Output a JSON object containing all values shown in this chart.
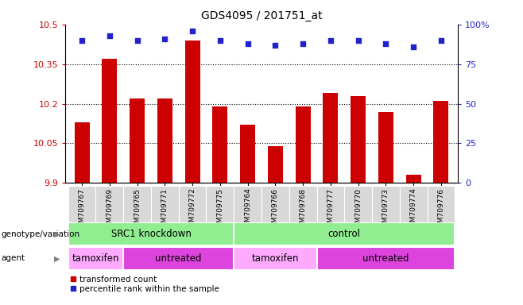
{
  "title": "GDS4095 / 201751_at",
  "samples": [
    "GSM709767",
    "GSM709769",
    "GSM709765",
    "GSM709771",
    "GSM709772",
    "GSM709775",
    "GSM709764",
    "GSM709766",
    "GSM709768",
    "GSM709777",
    "GSM709770",
    "GSM709773",
    "GSM709774",
    "GSM709776"
  ],
  "bar_values": [
    10.13,
    10.37,
    10.22,
    10.22,
    10.44,
    10.19,
    10.12,
    10.04,
    10.19,
    10.24,
    10.23,
    10.17,
    9.93,
    10.21
  ],
  "percentile_values": [
    90,
    93,
    90,
    91,
    96,
    90,
    88,
    87,
    88,
    90,
    90,
    88,
    86,
    90
  ],
  "ylim_left": [
    9.9,
    10.5
  ],
  "ylim_right": [
    0,
    100
  ],
  "left_ticks": [
    9.9,
    10.05,
    10.2,
    10.35,
    10.5
  ],
  "right_ticks": [
    0,
    25,
    50,
    75,
    100
  ],
  "right_tick_labels": [
    "0",
    "25",
    "50",
    "75",
    "100%"
  ],
  "dotted_lines": [
    10.05,
    10.2,
    10.35
  ],
  "bar_color": "#cc0000",
  "dot_color": "#2222cc",
  "genotype_groups": [
    {
      "label": "SRC1 knockdown",
      "start": 0,
      "end": 6
    },
    {
      "label": "control",
      "start": 6,
      "end": 14
    }
  ],
  "genotype_color": "#90ee90",
  "agent_groups": [
    {
      "label": "tamoxifen",
      "start": 0,
      "end": 2,
      "color": "#ffaaff"
    },
    {
      "label": "untreated",
      "start": 2,
      "end": 6,
      "color": "#dd44dd"
    },
    {
      "label": "tamoxifen",
      "start": 6,
      "end": 9,
      "color": "#ffaaff"
    },
    {
      "label": "untreated",
      "start": 9,
      "end": 14,
      "color": "#dd44dd"
    }
  ],
  "legend_items": [
    {
      "label": "transformed count",
      "color": "#cc0000"
    },
    {
      "label": "percentile rank within the sample",
      "color": "#2222cc"
    }
  ],
  "background_color": "#ffffff",
  "left_label_color": "#cc0000",
  "right_label_color": "#2222cc",
  "tick_label_bg": "#d8d8d8"
}
